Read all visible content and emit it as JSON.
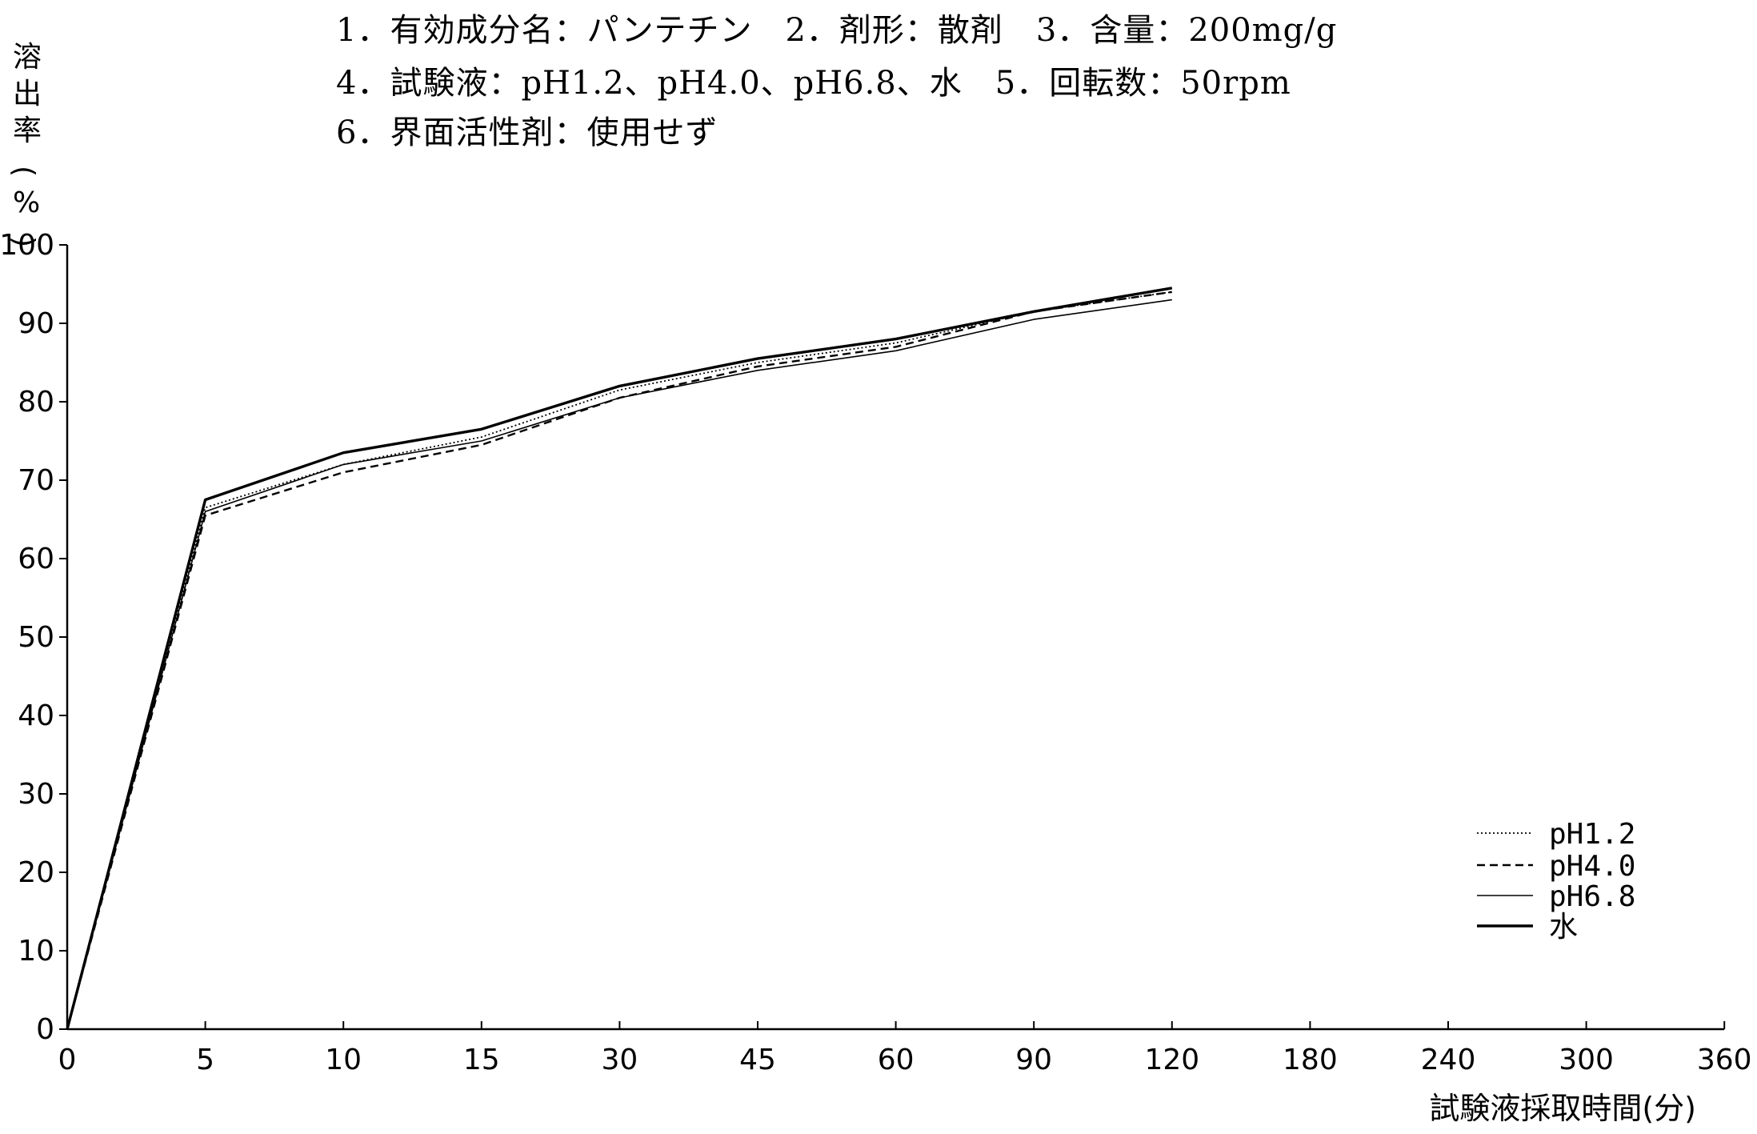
{
  "header": {
    "line1": "1．有効成分名：パンテチン　2．剤形：散剤　3．含量：200mg/g",
    "line2": "4．試験液：pH1.2、pH4.0、pH6.8、水　5．回転数：50rpm",
    "line3": "6．界面活性剤：使用せず"
  },
  "chart_data": {
    "type": "line",
    "title": "",
    "ylabel": "溶出率(%)",
    "xlabel": "試験液採取時間(分)",
    "x": [
      0,
      5,
      10,
      15,
      30,
      45,
      60,
      90,
      120
    ],
    "x_axis_ticks": [
      "0",
      "5",
      "10",
      "15",
      "30",
      "45",
      "60",
      "90",
      "120",
      "180",
      "240",
      "300",
      "360"
    ],
    "y_axis_ticks": [
      "0",
      "10",
      "20",
      "30",
      "40",
      "50",
      "60",
      "70",
      "80",
      "90",
      "100"
    ],
    "ylim": [
      0,
      100
    ],
    "grid": false,
    "legend_position": "bottom-right",
    "series": [
      {
        "name": "pH1.2",
        "style": "dotted",
        "values": [
          0,
          66.5,
          72.0,
          75.5,
          81.5,
          85.0,
          87.5,
          91.5,
          94.0
        ]
      },
      {
        "name": "pH4.0",
        "style": "dashed",
        "values": [
          0,
          65.5,
          71.0,
          74.5,
          80.5,
          84.5,
          87.0,
          91.5,
          94.0
        ]
      },
      {
        "name": "pH6.8",
        "style": "thin-solid",
        "values": [
          0,
          66.0,
          72.0,
          75.0,
          80.5,
          84.0,
          86.5,
          90.5,
          93.0
        ]
      },
      {
        "name": "水",
        "style": "thick-solid",
        "values": [
          0,
          67.5,
          73.5,
          76.5,
          82.0,
          85.5,
          88.0,
          91.5,
          94.5
        ]
      }
    ]
  }
}
